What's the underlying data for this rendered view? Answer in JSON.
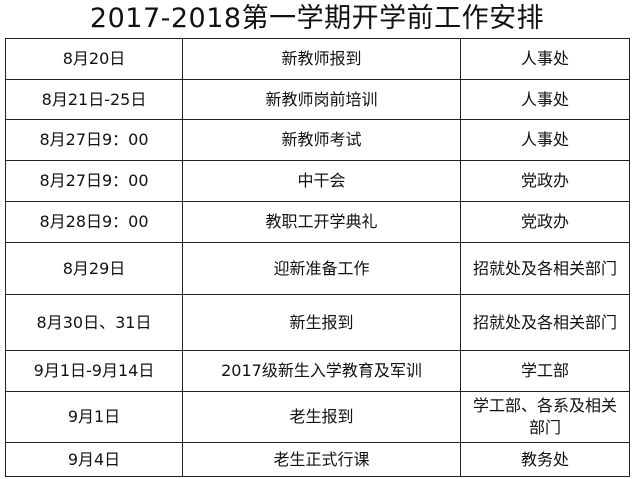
{
  "title": "2017-2018第一学期开学前工作安排",
  "rows": [
    {
      "date": "8月20日",
      "task": "新教师报到",
      "dept": "人事处"
    },
    {
      "date": "8月21日-25日",
      "task": "新教师岗前培训",
      "dept": "人事处"
    },
    {
      "date": "8月27日9：00",
      "task": "新教师考试",
      "dept": "人事处"
    },
    {
      "date": "8月27日9：00",
      "task": "中干会",
      "dept": "党政办"
    },
    {
      "date": "8月28日9：00",
      "task": "教职工开学典礼",
      "dept": "党政办"
    },
    {
      "date": "8月29日",
      "task": "迎新准备工作",
      "dept": "招就处及各相关部门"
    },
    {
      "date": "8月30日、31日",
      "task": "新生报到",
      "dept": "招就处及各相关部门"
    },
    {
      "date": "9月1日-9月14日",
      "task": "2017级新生入学教育及军训",
      "dept": "学工部"
    },
    {
      "date": "9月1日",
      "task": "老生报到",
      "dept": "学工部、各系及相关部门"
    },
    {
      "date": "9月4日",
      "task": "老生正式行课",
      "dept": "教务处"
    }
  ]
}
